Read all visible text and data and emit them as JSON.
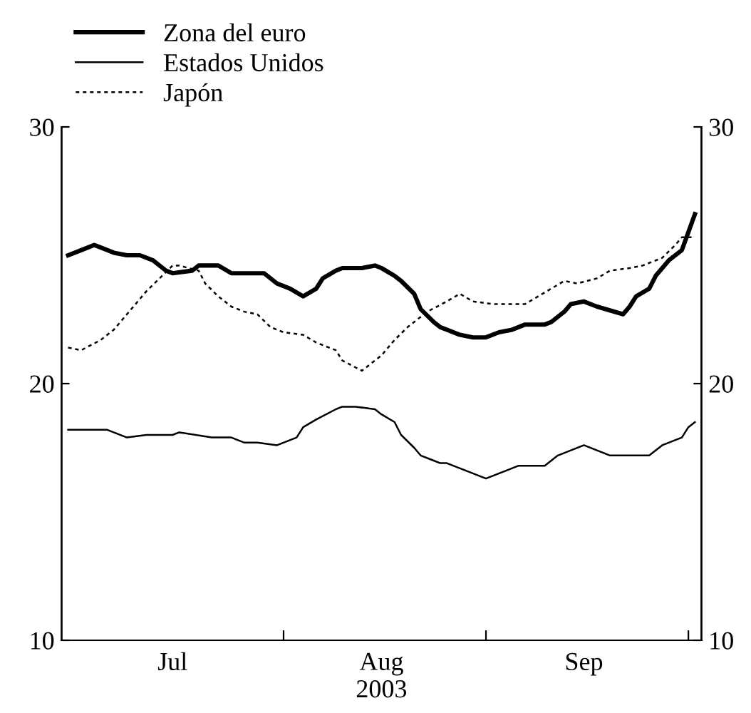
{
  "chart_data": {
    "type": "line",
    "xlabel": "2003",
    "xlim": [
      "2003-06-28",
      "2003-10-04"
    ],
    "xticks": [
      {
        "value": "2003-08-01",
        "label": null
      },
      {
        "value": "2003-09-01",
        "label": null
      },
      {
        "value": "2003-10-02",
        "label": null
      },
      {
        "value": "2003-07-15",
        "label": "Jul"
      },
      {
        "value": "2003-08-16",
        "label": "Aug"
      },
      {
        "value": "2003-09-16",
        "label": "Sep"
      }
    ],
    "ylim": [
      10,
      30
    ],
    "yticks": [
      10,
      20,
      30
    ],
    "y2lim": [
      10,
      30
    ],
    "y2ticks": [
      10,
      20,
      30
    ],
    "grid": false,
    "legend": "top left",
    "marker": "none",
    "series": [
      {
        "name": "Zona del euro",
        "color": "#000000",
        "line_style": "solid",
        "x": [
          "2003-06-29",
          "2003-07-01",
          "2003-07-03",
          "2003-07-04",
          "2003-07-06",
          "2003-07-08",
          "2003-07-10",
          "2003-07-12",
          "2003-07-14",
          "2003-07-15",
          "2003-07-18",
          "2003-07-19",
          "2003-07-21",
          "2003-07-22",
          "2003-07-24",
          "2003-07-26",
          "2003-07-28",
          "2003-07-29",
          "2003-07-31",
          "2003-08-02",
          "2003-08-04",
          "2003-08-06",
          "2003-08-07",
          "2003-08-09",
          "2003-08-10",
          "2003-08-13",
          "2003-08-15",
          "2003-08-16",
          "2003-08-18",
          "2003-08-19",
          "2003-08-21",
          "2003-08-22",
          "2003-08-24",
          "2003-08-25",
          "2003-08-26",
          "2003-08-28",
          "2003-08-30",
          "2003-09-01",
          "2003-09-03",
          "2003-09-05",
          "2003-09-07",
          "2003-09-10",
          "2003-09-11",
          "2003-09-13",
          "2003-09-14",
          "2003-09-16",
          "2003-09-18",
          "2003-09-22",
          "2003-09-23",
          "2003-09-24",
          "2003-09-26",
          "2003-09-27",
          "2003-09-29",
          "2003-10-01",
          "2003-10-02",
          "2003-10-03"
        ],
        "values": [
          25.0,
          25.2,
          25.4,
          25.3,
          25.1,
          25.0,
          25.0,
          24.8,
          24.4,
          24.3,
          24.4,
          24.6,
          24.6,
          24.6,
          24.3,
          24.3,
          24.3,
          24.3,
          23.9,
          23.7,
          23.4,
          23.7,
          24.1,
          24.4,
          24.5,
          24.5,
          24.6,
          24.5,
          24.2,
          24.0,
          23.5,
          22.9,
          22.4,
          22.2,
          22.1,
          21.9,
          21.8,
          21.8,
          22.0,
          22.1,
          22.3,
          22.3,
          22.4,
          22.8,
          23.1,
          23.2,
          23.0,
          22.7,
          23.0,
          23.4,
          23.7,
          24.2,
          24.8,
          25.2,
          25.9,
          26.6
        ]
      },
      {
        "name": "Estados Unidos",
        "color": "#000000",
        "line_style": "solid",
        "x": [
          "2003-06-29",
          "2003-07-02",
          "2003-07-05",
          "2003-07-08",
          "2003-07-11",
          "2003-07-15",
          "2003-07-16",
          "2003-07-21",
          "2003-07-24",
          "2003-07-26",
          "2003-07-28",
          "2003-07-31",
          "2003-08-03",
          "2003-08-04",
          "2003-08-06",
          "2003-08-09",
          "2003-08-10",
          "2003-08-12",
          "2003-08-15",
          "2003-08-16",
          "2003-08-18",
          "2003-08-19",
          "2003-08-21",
          "2003-08-22",
          "2003-08-24",
          "2003-08-25",
          "2003-08-26",
          "2003-08-29",
          "2003-09-01",
          "2003-09-04",
          "2003-09-06",
          "2003-09-10",
          "2003-09-12",
          "2003-09-16",
          "2003-09-18",
          "2003-09-20",
          "2003-09-22",
          "2003-09-23",
          "2003-09-26",
          "2003-09-28",
          "2003-10-01",
          "2003-10-02",
          "2003-10-03"
        ],
        "values": [
          18.2,
          18.2,
          18.2,
          17.9,
          18.0,
          18.0,
          18.1,
          17.9,
          17.9,
          17.7,
          17.7,
          17.6,
          17.9,
          18.3,
          18.6,
          19.0,
          19.1,
          19.1,
          19.0,
          18.8,
          18.5,
          18.0,
          17.5,
          17.2,
          17.0,
          16.9,
          16.9,
          16.6,
          16.3,
          16.6,
          16.8,
          16.8,
          17.2,
          17.6,
          17.4,
          17.2,
          17.2,
          17.2,
          17.2,
          17.6,
          17.9,
          18.3,
          18.5
        ]
      },
      {
        "name": "Japón",
        "color": "#000000",
        "line_style": "dashed",
        "x": [
          "2003-06-29",
          "2003-07-01",
          "2003-07-04",
          "2003-07-06",
          "2003-07-08",
          "2003-07-11",
          "2003-07-13",
          "2003-07-15",
          "2003-07-16",
          "2003-07-19",
          "2003-07-20",
          "2003-07-22",
          "2003-07-24",
          "2003-07-26",
          "2003-07-28",
          "2003-07-30",
          "2003-08-01",
          "2003-08-04",
          "2003-08-06",
          "2003-08-09",
          "2003-08-10",
          "2003-08-13",
          "2003-08-16",
          "2003-08-18",
          "2003-08-20",
          "2003-08-23",
          "2003-08-26",
          "2003-08-28",
          "2003-08-30",
          "2003-09-02",
          "2003-09-07",
          "2003-09-09",
          "2003-09-11",
          "2003-09-13",
          "2003-09-15",
          "2003-09-18",
          "2003-09-20",
          "2003-09-23",
          "2003-09-25",
          "2003-09-28",
          "2003-09-30",
          "2003-10-01",
          "2003-10-03"
        ],
        "values": [
          21.4,
          21.3,
          21.7,
          22.1,
          22.7,
          23.6,
          24.1,
          24.6,
          24.6,
          24.4,
          23.9,
          23.4,
          23.0,
          22.8,
          22.7,
          22.2,
          22.0,
          21.9,
          21.6,
          21.3,
          20.9,
          20.5,
          21.1,
          21.7,
          22.2,
          22.8,
          23.2,
          23.5,
          23.2,
          23.1,
          23.1,
          23.4,
          23.7,
          24.0,
          23.9,
          24.1,
          24.4,
          24.5,
          24.6,
          24.9,
          25.4,
          25.7,
          25.7
        ]
      }
    ]
  }
}
